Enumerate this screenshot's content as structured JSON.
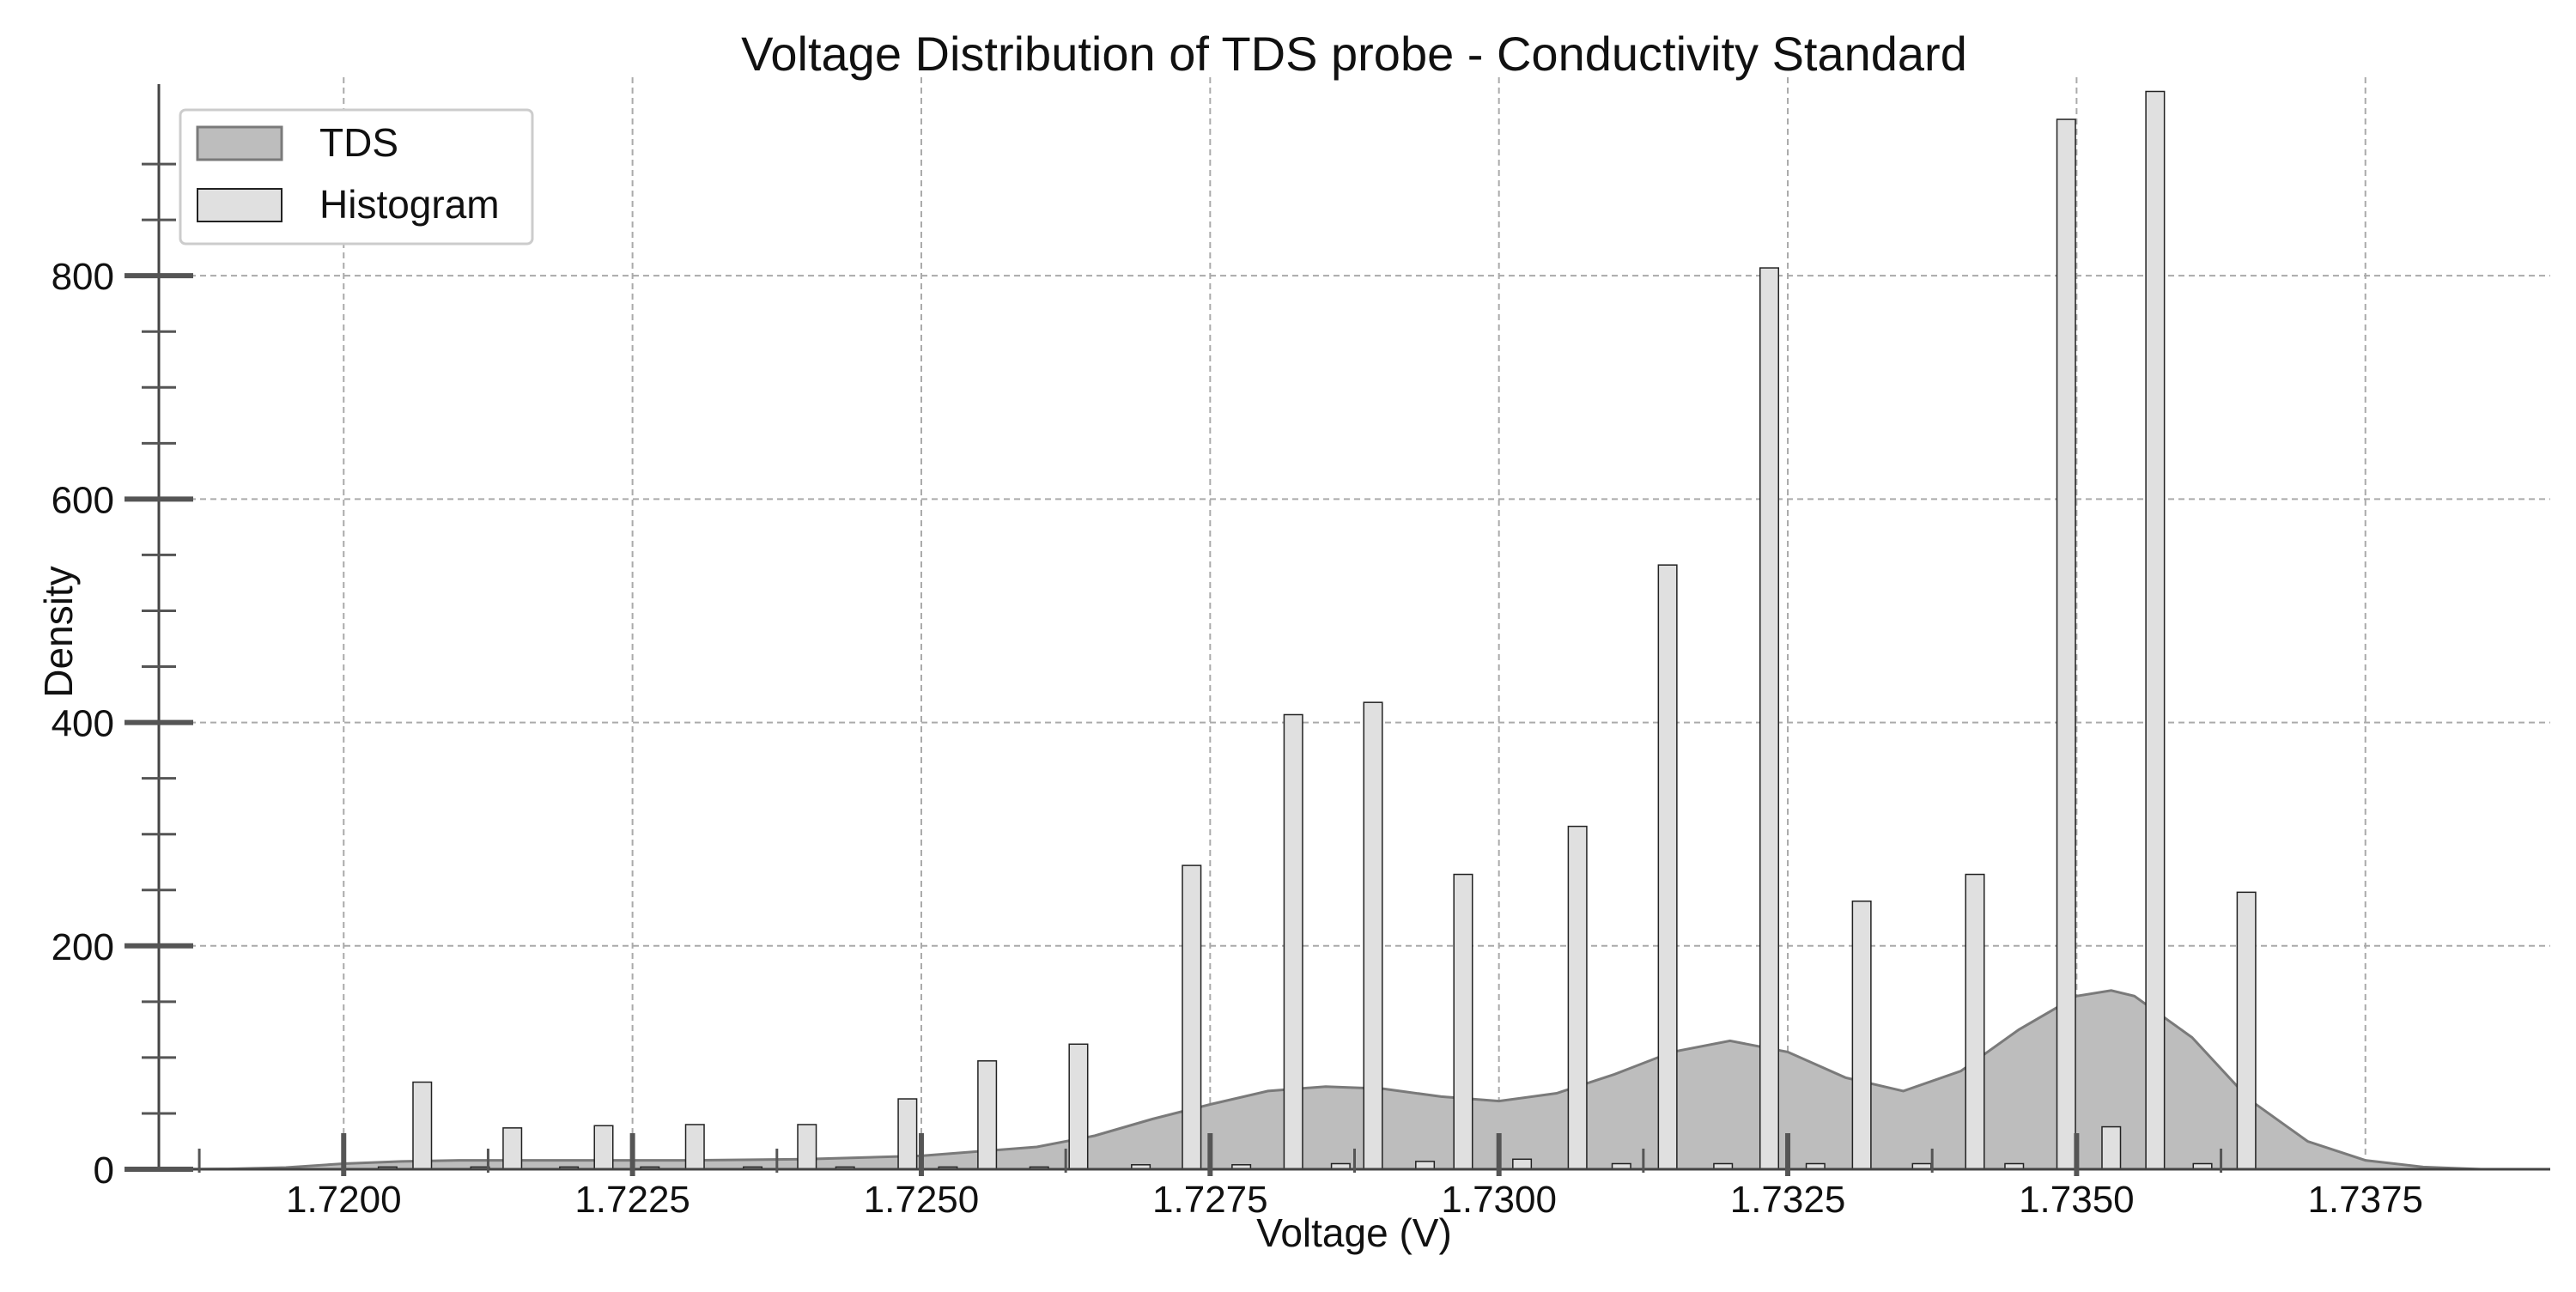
{
  "colors": {
    "kde_fill": "#bdbdbd",
    "kde_line": "#7a7a7a",
    "hist_fill": "#e0e0e0",
    "hist_edge": "#222222",
    "grid": "#aaaaaa",
    "axis": "#444444"
  },
  "chart_data": {
    "type": "bar",
    "title": "Voltage Distribution of TDS probe - Conductivity Standard",
    "xlabel": "Voltage (V)",
    "ylabel": "Density",
    "xlim": [
      1.7184,
      1.7391
    ],
    "ylim": [
      0,
      970
    ],
    "grid": true,
    "legend_position": "top-left",
    "legend": [
      "TDS",
      "Histogram"
    ],
    "x_ticks": [
      "1.7200",
      "1.7225",
      "1.7250",
      "1.7275",
      "1.7300",
      "1.7325",
      "1.7350",
      "1.7375"
    ],
    "y_ticks": [
      "0",
      "200",
      "400",
      "600",
      "800"
    ],
    "histogram": {
      "bin_width": 0.00016,
      "bins": [
        [
          1.72068,
          78
        ],
        [
          1.72146,
          37
        ],
        [
          1.72225,
          39
        ],
        [
          1.72304,
          40
        ],
        [
          1.72401,
          40
        ],
        [
          1.72488,
          63
        ],
        [
          1.72557,
          97
        ],
        [
          1.72636,
          112
        ],
        [
          1.72734,
          272
        ],
        [
          1.72822,
          407
        ],
        [
          1.72891,
          418
        ],
        [
          1.72969,
          264
        ],
        [
          1.73068,
          307
        ],
        [
          1.73146,
          541
        ],
        [
          1.73234,
          807
        ],
        [
          1.73314,
          240
        ],
        [
          1.73412,
          264
        ],
        [
          1.73491,
          940
        ],
        [
          1.7353,
          38
        ],
        [
          1.73568,
          965
        ],
        [
          1.73647,
          248
        ],
        [
          1.72038,
          2
        ],
        [
          1.72118,
          2
        ],
        [
          1.72195,
          2
        ],
        [
          1.72265,
          2
        ],
        [
          1.72354,
          2
        ],
        [
          1.72434,
          2
        ],
        [
          1.72523,
          2
        ],
        [
          1.72602,
          2
        ],
        [
          1.7269,
          4
        ],
        [
          1.72777,
          4
        ],
        [
          1.72863,
          5
        ],
        [
          1.72936,
          7
        ],
        [
          1.7302,
          9
        ],
        [
          1.73106,
          5
        ],
        [
          1.73194,
          5
        ],
        [
          1.73274,
          5
        ],
        [
          1.73366,
          5
        ],
        [
          1.73446,
          5
        ],
        [
          1.73609,
          5
        ]
      ]
    },
    "kde": {
      "x": [
        1.7185,
        1.719,
        1.7195,
        1.72,
        1.7205,
        1.721,
        1.722,
        1.723,
        1.724,
        1.725,
        1.726,
        1.7265,
        1.727,
        1.7275,
        1.728,
        1.7285,
        1.729,
        1.7295,
        1.73,
        1.7305,
        1.731,
        1.7315,
        1.732,
        1.7325,
        1.733,
        1.7335,
        1.734,
        1.7345,
        1.735,
        1.7353,
        1.7355,
        1.736,
        1.7365,
        1.737,
        1.7375,
        1.738,
        1.7385
      ],
      "y": [
        0,
        0.3,
        1.5,
        5,
        7,
        8,
        8,
        8,
        9,
        12,
        20,
        30,
        45,
        58,
        70,
        74,
        72,
        65,
        61,
        68,
        85,
        105,
        115,
        105,
        82,
        70,
        88,
        125,
        155,
        160,
        155,
        118,
        62,
        25,
        8,
        2,
        0
      ]
    }
  }
}
